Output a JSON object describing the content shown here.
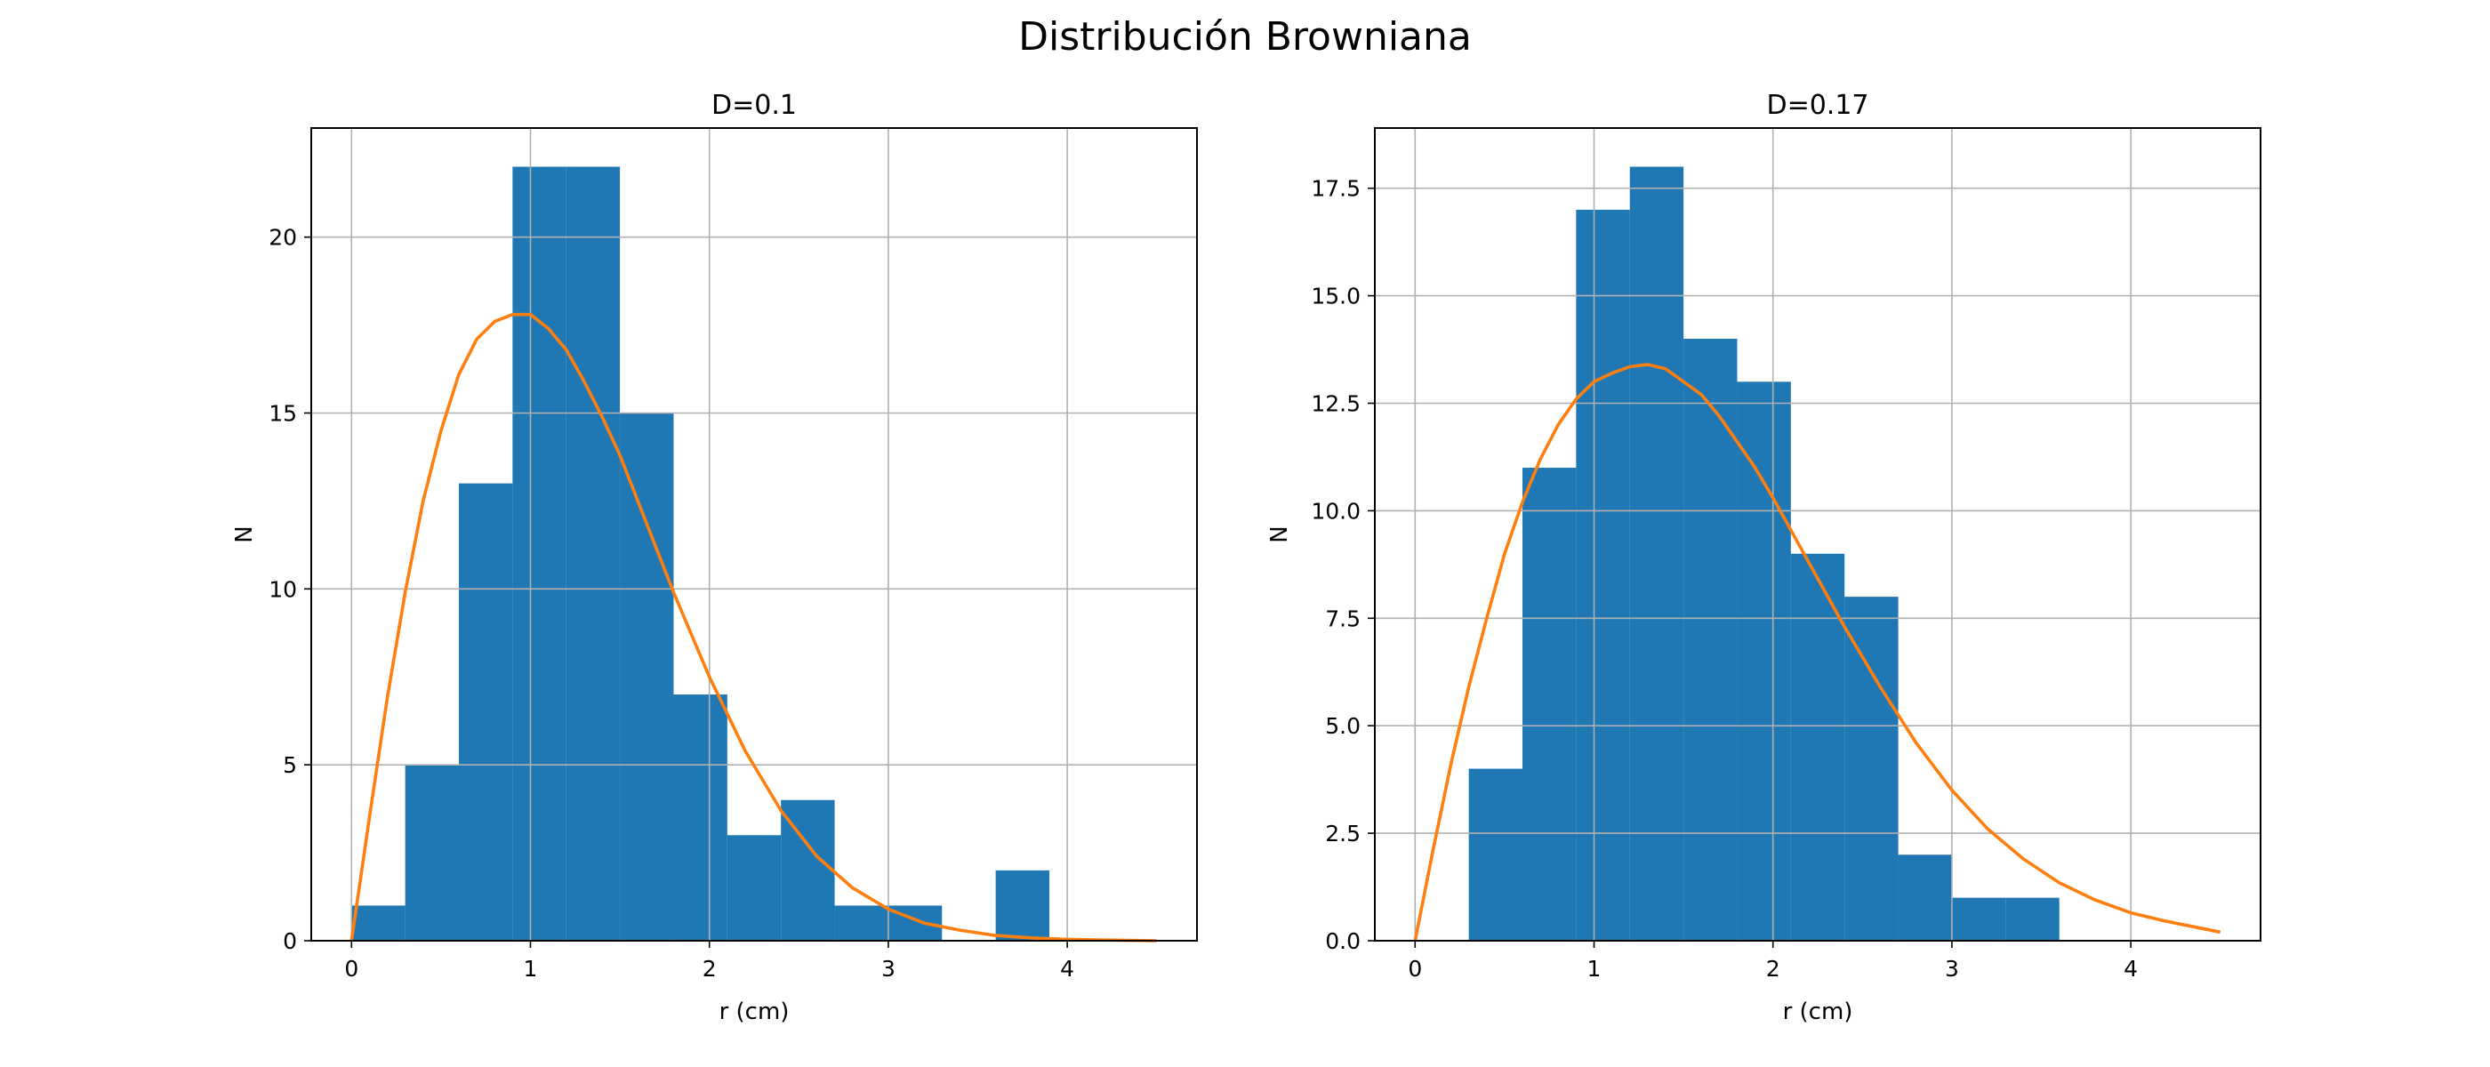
{
  "figure": {
    "title": "Distribución Browniana"
  },
  "chart_data": [
    {
      "type": "bar",
      "title": "D=0.1",
      "xlabel": "r (cm)",
      "ylabel": "N",
      "xlim": [
        -0.225,
        4.725
      ],
      "ylim": [
        0,
        23.1
      ],
      "xticks": [
        0,
        1,
        2,
        3,
        4
      ],
      "yticks": [
        0,
        5,
        10,
        15,
        20
      ],
      "ytick_labels": [
        "0",
        "5",
        "10",
        "15",
        "20"
      ],
      "grid": true,
      "bar_color": "#1f77b4",
      "curve_color": "#ff7f0e",
      "histogram": {
        "bin_edges": [
          0.0,
          0.3,
          0.6,
          0.9,
          1.2,
          1.5,
          1.8,
          2.1,
          2.4,
          2.7,
          3.0,
          3.3,
          3.6,
          3.9
        ],
        "counts": [
          1,
          5,
          13,
          22,
          22,
          15,
          7,
          3,
          4,
          1,
          1,
          0,
          2
        ]
      },
      "curve": {
        "x": [
          0,
          0.1,
          0.2,
          0.3,
          0.4,
          0.5,
          0.6,
          0.7,
          0.8,
          0.9,
          1.0,
          1.1,
          1.2,
          1.3,
          1.4,
          1.5,
          1.6,
          1.7,
          1.8,
          1.9,
          2.0,
          2.2,
          2.4,
          2.6,
          2.8,
          3.0,
          3.2,
          3.4,
          3.6,
          3.8,
          4.0,
          4.2,
          4.5
        ],
        "y": [
          0,
          3.5,
          6.9,
          9.9,
          12.5,
          14.5,
          16.1,
          17.1,
          17.6,
          17.8,
          17.8,
          17.4,
          16.8,
          15.9,
          14.9,
          13.8,
          12.5,
          11.2,
          9.9,
          8.7,
          7.5,
          5.4,
          3.7,
          2.4,
          1.5,
          0.9,
          0.5,
          0.3,
          0.15,
          0.08,
          0.04,
          0.02,
          0.0
        ]
      }
    },
    {
      "type": "bar",
      "title": "D=0.17",
      "xlabel": "r (cm)",
      "ylabel": "N",
      "xlim": [
        -0.225,
        4.725
      ],
      "ylim": [
        0,
        18.9
      ],
      "xticks": [
        0,
        1,
        2,
        3,
        4
      ],
      "yticks": [
        0,
        2.5,
        5,
        7.5,
        10,
        12.5,
        15,
        17.5
      ],
      "ytick_labels": [
        "0.0",
        "2.5",
        "5.0",
        "7.5",
        "10.0",
        "12.5",
        "15.0",
        "17.5"
      ],
      "grid": true,
      "bar_color": "#1f77b4",
      "curve_color": "#ff7f0e",
      "histogram": {
        "bin_edges": [
          0.3,
          0.6,
          0.9,
          1.2,
          1.5,
          1.8,
          2.1,
          2.4,
          2.7,
          3.0,
          3.3,
          3.6
        ],
        "counts": [
          4,
          11,
          17,
          18,
          14,
          13,
          9,
          8,
          2,
          1,
          1
        ]
      },
      "curve": {
        "x": [
          0,
          0.1,
          0.2,
          0.3,
          0.4,
          0.5,
          0.6,
          0.7,
          0.8,
          0.9,
          1.0,
          1.1,
          1.2,
          1.3,
          1.4,
          1.5,
          1.6,
          1.7,
          1.8,
          1.9,
          2.0,
          2.2,
          2.4,
          2.6,
          2.8,
          3.0,
          3.2,
          3.4,
          3.6,
          3.8,
          4.0,
          4.2,
          4.5
        ],
        "y": [
          0,
          2.1,
          4.1,
          5.9,
          7.5,
          9.0,
          10.2,
          11.2,
          12.0,
          12.6,
          13.0,
          13.2,
          13.35,
          13.4,
          13.3,
          13.0,
          12.7,
          12.2,
          11.6,
          11.0,
          10.3,
          8.8,
          7.3,
          5.9,
          4.6,
          3.5,
          2.6,
          1.9,
          1.35,
          0.95,
          0.65,
          0.45,
          0.2
        ]
      }
    }
  ]
}
